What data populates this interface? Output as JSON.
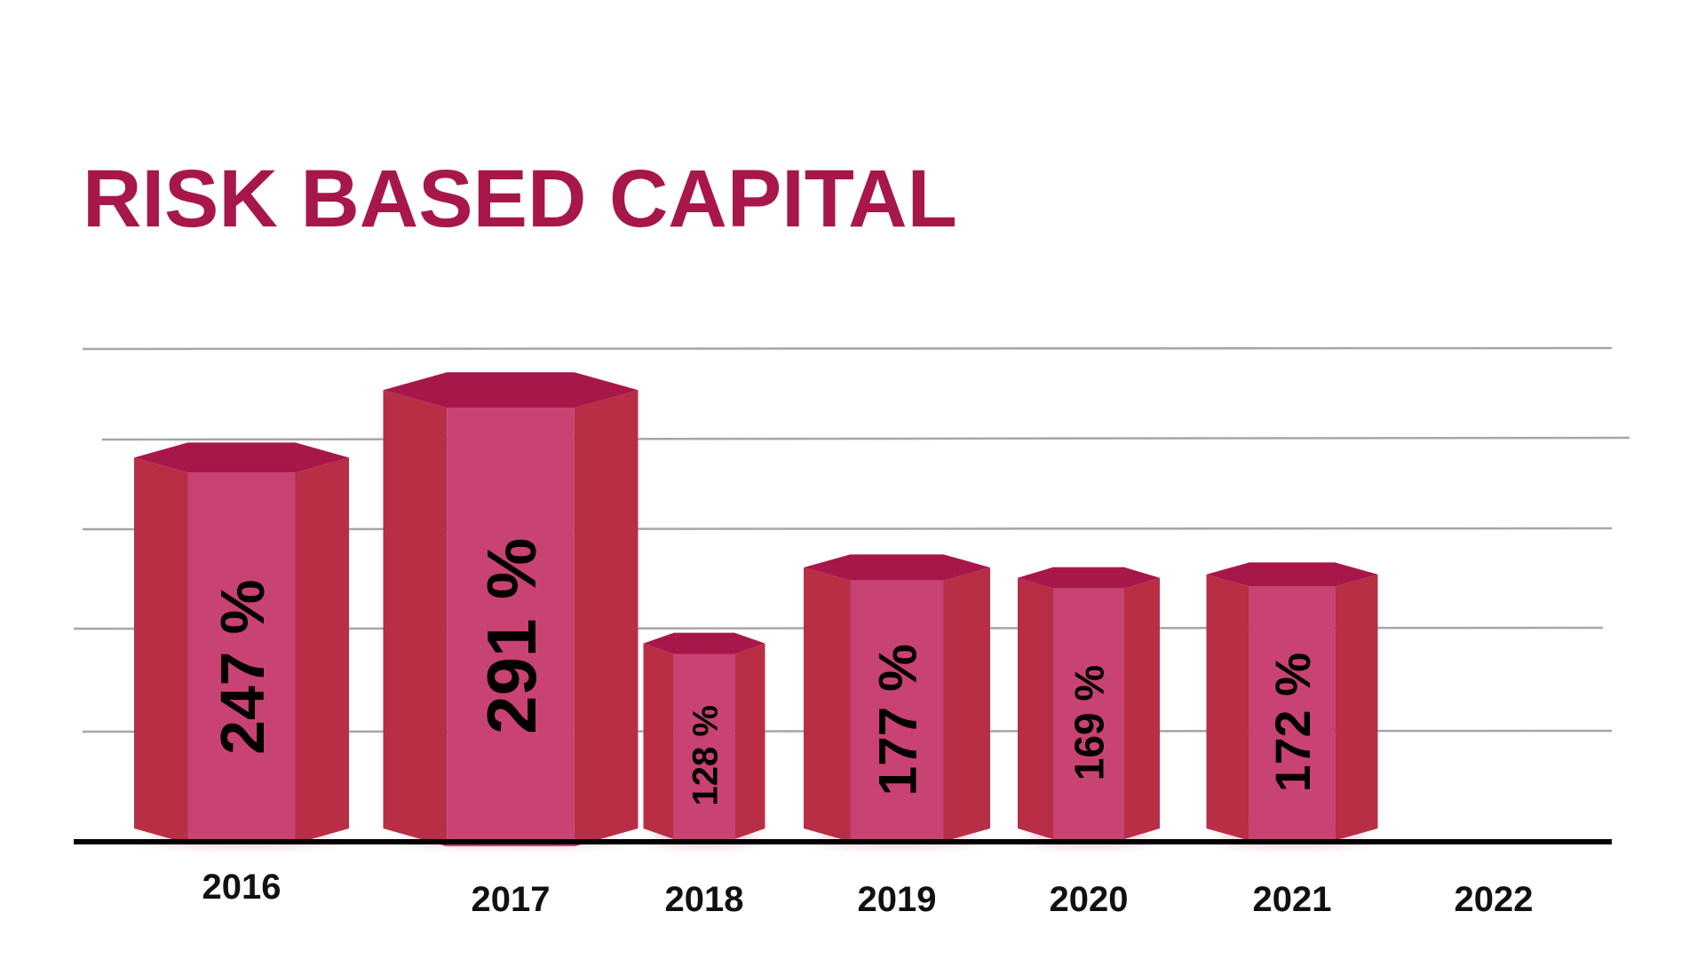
{
  "chart_data": {
    "type": "bar",
    "title": "RISK BASED CAPITAL",
    "categories": [
      "2016",
      "2017",
      "2018",
      "2019",
      "2020",
      "2021",
      "2022"
    ],
    "values": [
      247,
      291,
      128,
      177,
      169,
      172,
      null
    ],
    "value_labels": [
      "247 %",
      "291 %",
      "128 %",
      "177 %",
      "169 %",
      "172 %",
      ""
    ],
    "unit": "%",
    "grid": true,
    "legend": "none",
    "colors": {
      "bar_front": "#c84273",
      "bar_side": "#b82e45",
      "bar_top": "#a8174a",
      "title": "#a8174a",
      "gridline": "#a6a6a6",
      "baseline": "#000000"
    }
  }
}
